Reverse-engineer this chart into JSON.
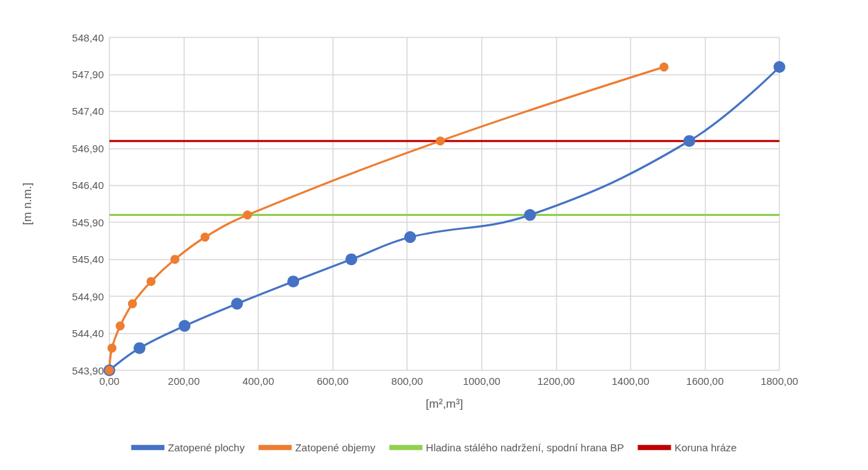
{
  "chart_data": {
    "type": "line",
    "xlabel": "[m²,m³]",
    "ylabel": "[m n.m.]",
    "series": [
      {
        "name": "Zatopené plochy",
        "color": "#4472c4",
        "x": [
          0,
          81,
          202,
          343,
          494,
          650,
          808,
          1130,
          1558,
          1800
        ],
        "values": [
          543.9,
          544.2,
          544.5,
          544.8,
          545.1,
          545.4,
          545.7,
          546.0,
          547.0,
          548.0
        ]
      },
      {
        "name": "Zatopené objemy",
        "color": "#ed7d31",
        "x": [
          0,
          7,
          29,
          62,
          112,
          176,
          257,
          371,
          889,
          1490
        ],
        "values": [
          543.9,
          544.2,
          544.5,
          544.8,
          545.1,
          545.4,
          545.7,
          546.0,
          547.0,
          548.0
        ]
      }
    ],
    "ref_lines": [
      {
        "axis": "y",
        "value": 546.0,
        "label": "Hladina stálého nadržení, spodní hrana BP",
        "color": "#92d050"
      },
      {
        "axis": "y",
        "value": 547.0,
        "label": "Koruna hráze",
        "color": "#c00000"
      }
    ],
    "xlim": [
      0,
      1800
    ],
    "xticks": [
      {
        "value": 0,
        "label": "0,00"
      },
      {
        "value": 200,
        "label": "200,00"
      },
      {
        "value": 400,
        "label": "400,00"
      },
      {
        "value": 600,
        "label": "600,00"
      },
      {
        "value": 800,
        "label": "800,00"
      },
      {
        "value": 1000,
        "label": "1000,00"
      },
      {
        "value": 1200,
        "label": "1200,00"
      },
      {
        "value": 1400,
        "label": "1400,00"
      },
      {
        "value": 1600,
        "label": "1600,00"
      },
      {
        "value": 1800,
        "label": "1800,00"
      }
    ],
    "ylim": [
      543.9,
      548.4
    ],
    "yticks": [
      {
        "value": 543.9,
        "label": "543,90"
      },
      {
        "value": 544.4,
        "label": "544,40"
      },
      {
        "value": 544.9,
        "label": "544,90"
      },
      {
        "value": 545.4,
        "label": "545,40"
      },
      {
        "value": 545.9,
        "label": "545,90"
      },
      {
        "value": 546.4,
        "label": "546,40"
      },
      {
        "value": 546.9,
        "label": "546,90"
      },
      {
        "value": 547.4,
        "label": "547,40"
      },
      {
        "value": 547.9,
        "label": "547,90"
      },
      {
        "value": 548.4,
        "label": "548,40"
      }
    ],
    "grid": true,
    "legend": "bottom",
    "marker": "circle",
    "line_style": "solid"
  }
}
